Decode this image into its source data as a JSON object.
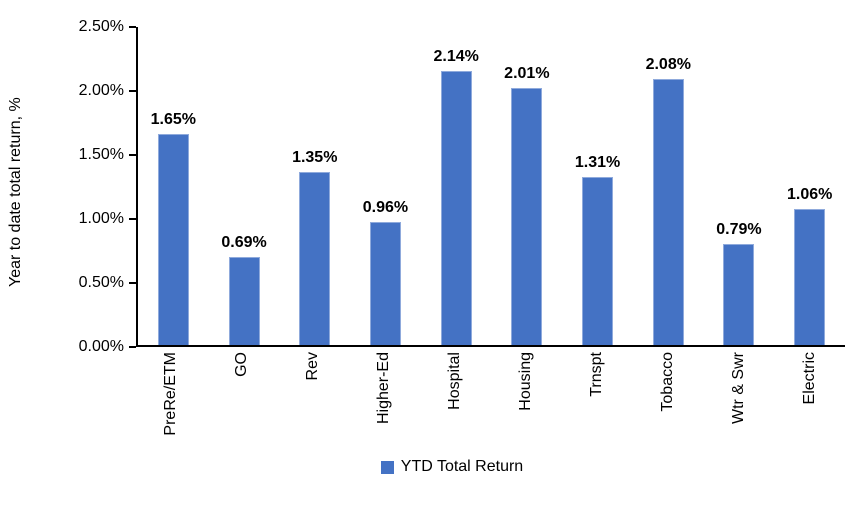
{
  "chart_data": {
    "type": "bar",
    "title": "",
    "ylabel": "Year to date total return, %",
    "xlabel": "",
    "categories": [
      "PreRe/ETM",
      "GO",
      "Rev",
      "Higher-Ed",
      "Hospital",
      "Housing",
      "Trnspt",
      "Tobacco",
      "Wtr & Swr",
      "Electric"
    ],
    "values": [
      1.65,
      0.69,
      1.35,
      0.96,
      2.14,
      2.01,
      1.31,
      2.08,
      0.79,
      1.06
    ],
    "data_labels": [
      "1.65%",
      "0.69%",
      "1.35%",
      "0.96%",
      "2.14%",
      "2.01%",
      "1.31%",
      "2.08%",
      "0.79%",
      "1.06%"
    ],
    "ylim": [
      0,
      2.5
    ],
    "yticks": [
      0,
      0.5,
      1.0,
      1.5,
      2.0,
      2.5
    ],
    "ytick_labels": [
      "0.00%",
      "0.50%",
      "1.00%",
      "1.50%",
      "2.00%",
      "2.50%"
    ],
    "grid": false,
    "legend_position": "bottom-center",
    "legend_entries": [
      "YTD Total Return"
    ],
    "colors": {
      "bar_fill": "#4472C4",
      "bar_border": "#8FAADC",
      "axis": "#000000",
      "text": "#000000",
      "background": "#FFFFFF"
    }
  },
  "legend": {
    "label": "YTD Total Return"
  },
  "axes": {
    "y_title": "Year to date total return, %"
  }
}
